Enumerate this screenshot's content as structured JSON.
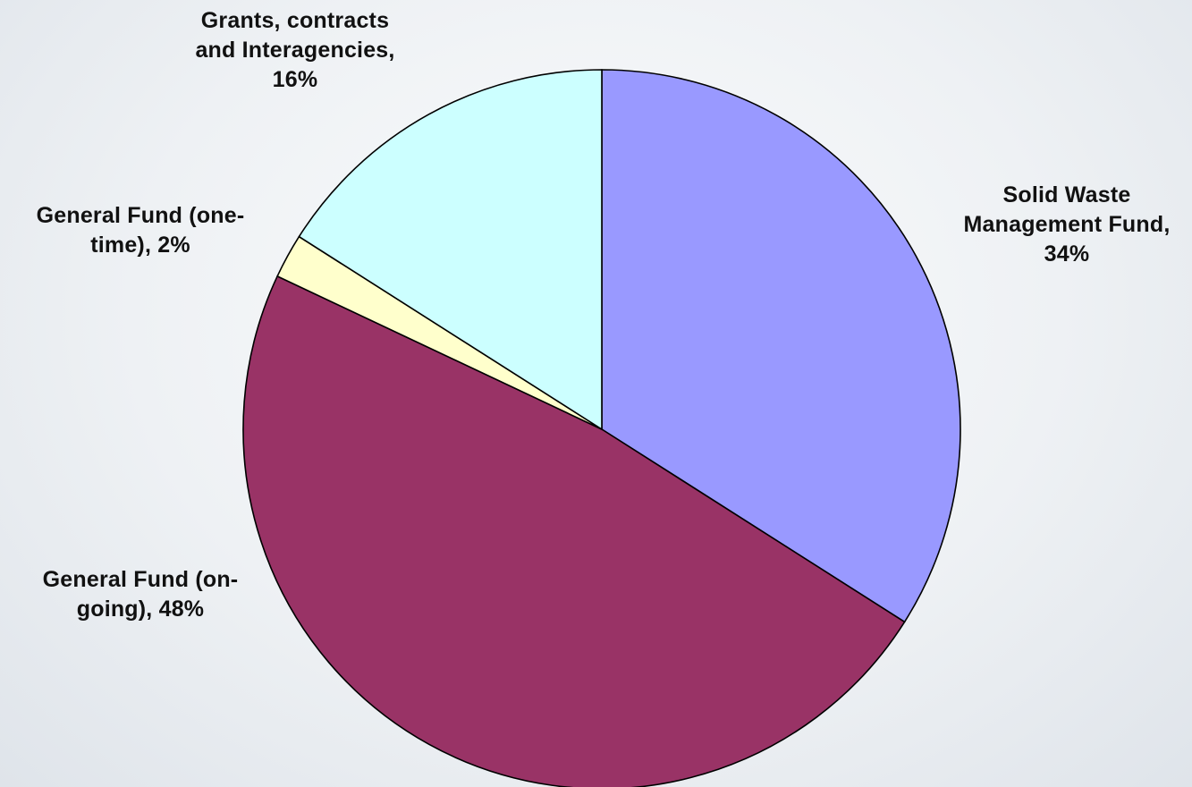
{
  "chart_data": {
    "type": "pie",
    "start_angle_deg": 0,
    "direction": "clockwise",
    "slices": [
      {
        "name": "Solid Waste Management Fund",
        "value": 34,
        "label_lines": [
          "Solid Waste",
          "Management Fund,",
          "34%"
        ],
        "color": "#9999ff"
      },
      {
        "name": "General Fund (on-going)",
        "value": 48,
        "label_lines": [
          "General Fund (on-",
          "going), 48%"
        ],
        "color": "#993366"
      },
      {
        "name": "General Fund (one-time)",
        "value": 2,
        "label_lines": [
          "General Fund (one-",
          "time), 2%"
        ],
        "color": "#ffffcc"
      },
      {
        "name": "Grants, contracts and Interagencies",
        "value": 16,
        "label_lines": [
          "Grants, contracts",
          "and Interagencies,",
          "16%"
        ],
        "color": "#ccffff"
      }
    ]
  }
}
